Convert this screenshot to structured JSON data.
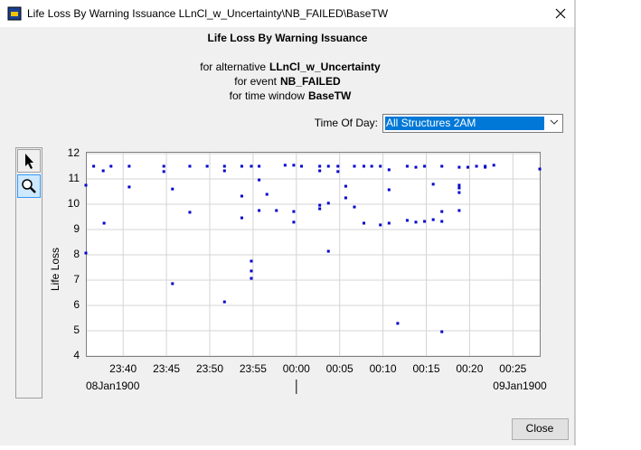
{
  "window_title": "Life Loss By Warning Issuance LLnCl_w_Uncertainty\\NB_FAILED\\BaseTW",
  "controls": {
    "time_of_day_label": "Time Of Day:",
    "time_of_day_value": "All Structures 2AM",
    "close": "Close"
  },
  "chart_data": {
    "type": "scatter",
    "title": "Life Loss By Warning Issuance",
    "subtitle_lines": [
      {
        "text": "for alternative",
        "value": "LLnCl_w_Uncertainty"
      },
      {
        "text": "for event",
        "value": "NB_FAILED"
      },
      {
        "text": "for time window",
        "value": "BaseTW"
      }
    ],
    "y_label": "Life Loss",
    "x_date_labels": [
      "08Jan1900",
      "09Jan1900"
    ],
    "color": "#0000cc",
    "grid": true,
    "xlim": [
      1415.7,
      1468.1
    ],
    "ylim": [
      4,
      12.07
    ],
    "yticks": [
      4,
      5,
      6,
      7,
      8,
      9,
      10,
      11,
      12
    ],
    "xticks": [
      {
        "value": 1420,
        "label": "23:40"
      },
      {
        "value": 1425,
        "label": "23:45"
      },
      {
        "value": 1430,
        "label": "23:50"
      },
      {
        "value": 1435,
        "label": "23:55"
      },
      {
        "value": 1440,
        "label": "00:00"
      },
      {
        "value": 1445,
        "label": "00:05"
      },
      {
        "value": 1450,
        "label": "00:10"
      },
      {
        "value": 1455,
        "label": "00:15"
      },
      {
        "value": 1460,
        "label": "00:20"
      },
      {
        "value": 1465,
        "label": "00:25"
      }
    ],
    "x": [
      1415.7,
      1415.7,
      1416.6,
      1417.7,
      1417.8,
      1418.6,
      1420.7,
      1420.7,
      1424.7,
      1424.7,
      1425.7,
      1425.7,
      1427.7,
      1427.7,
      1429.7,
      1431.7,
      1431.7,
      1431.7,
      1433.7,
      1433.7,
      1433.7,
      1434.8,
      1434.8,
      1434.8,
      1434.8,
      1435.7,
      1435.7,
      1435.7,
      1436.6,
      1437.7,
      1438.7,
      1439.7,
      1439.7,
      1439.7,
      1440.6,
      1442.7,
      1442.7,
      1442.7,
      1442.7,
      1443.7,
      1443.7,
      1443.7,
      1444.8,
      1444.8,
      1445.7,
      1445.7,
      1446.7,
      1446.7,
      1447.8,
      1447.8,
      1448.7,
      1449.7,
      1449.7,
      1450.7,
      1450.7,
      1450.7,
      1451.7,
      1452.8,
      1452.8,
      1453.8,
      1453.8,
      1454.8,
      1454.8,
      1455.8,
      1455.8,
      1456.8,
      1456.8,
      1456.8,
      1456.8,
      1458.8,
      1458.8,
      1458.8,
      1458.8,
      1458.8,
      1459.8,
      1460.8,
      1461.8,
      1461.8,
      1462.8,
      1468.1
    ],
    "values": [
      10.75,
      8.07,
      11.5,
      11.32,
      9.25,
      11.5,
      11.5,
      10.68,
      11.5,
      11.29,
      10.6,
      6.86,
      11.5,
      9.68,
      11.5,
      11.5,
      11.32,
      6.14,
      11.5,
      10.32,
      9.46,
      11.5,
      7.75,
      7.36,
      7.07,
      11.5,
      10.96,
      9.75,
      10.39,
      9.75,
      11.54,
      11.54,
      9.71,
      9.29,
      11.5,
      11.5,
      11.32,
      9.96,
      9.82,
      11.5,
      10.04,
      8.14,
      11.5,
      11.29,
      10.71,
      10.25,
      11.5,
      9.89,
      11.5,
      9.25,
      11.5,
      11.5,
      9.18,
      11.36,
      10.57,
      9.25,
      5.29,
      11.5,
      9.36,
      11.46,
      9.29,
      11.5,
      9.32,
      10.79,
      9.39,
      11.5,
      9.71,
      9.32,
      4.96,
      11.46,
      10.75,
      10.64,
      10.46,
      9.75,
      11.46,
      11.5,
      11.5,
      11.46,
      11.54,
      11.39
    ]
  }
}
